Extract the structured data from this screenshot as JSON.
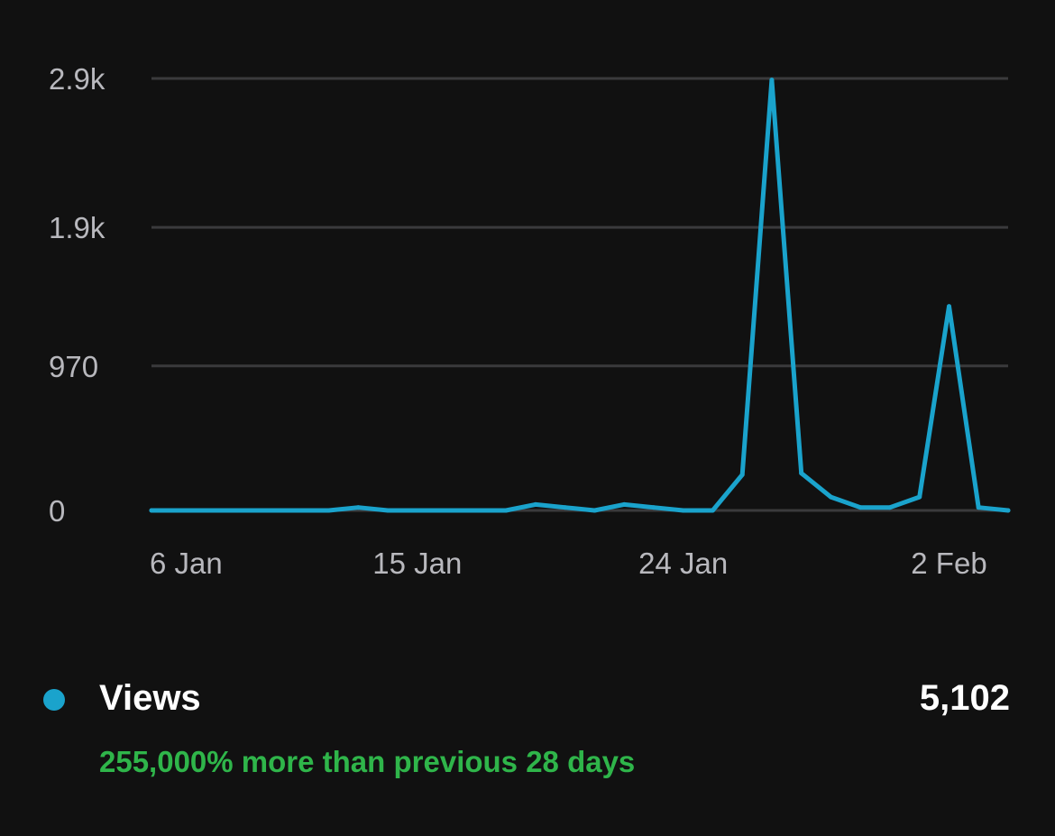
{
  "chart_data": {
    "type": "line",
    "title": "",
    "xlabel": "",
    "ylabel": "",
    "x_tick_labels": [
      "6 Jan",
      "15 Jan",
      "24 Jan",
      "2 Feb"
    ],
    "x_tick_dates": [
      "2025-01-06",
      "2025-01-15",
      "2025-01-24",
      "2025-02-02"
    ],
    "y_ticks": [
      0,
      970,
      1900,
      2900
    ],
    "y_tick_labels": [
      "0",
      "970",
      "1.9k",
      "2.9k"
    ],
    "ylim": [
      0,
      2900
    ],
    "xlim": [
      "2025-01-06",
      "2025-02-04"
    ],
    "grid": true,
    "legend": "bottom-left",
    "series": [
      {
        "name": "Views",
        "color": "#1aa3cc",
        "x": [
          "2025-01-06",
          "2025-01-07",
          "2025-01-08",
          "2025-01-09",
          "2025-01-10",
          "2025-01-11",
          "2025-01-12",
          "2025-01-13",
          "2025-01-14",
          "2025-01-15",
          "2025-01-16",
          "2025-01-17",
          "2025-01-18",
          "2025-01-19",
          "2025-01-20",
          "2025-01-21",
          "2025-01-22",
          "2025-01-23",
          "2025-01-24",
          "2025-01-25",
          "2025-01-26",
          "2025-01-27",
          "2025-01-28",
          "2025-01-29",
          "2025-01-30",
          "2025-01-31",
          "2025-02-01",
          "2025-02-02",
          "2025-02-03",
          "2025-02-04"
        ],
        "values": [
          0,
          0,
          0,
          0,
          0,
          0,
          0,
          20,
          0,
          0,
          0,
          0,
          0,
          40,
          20,
          0,
          40,
          20,
          0,
          0,
          240,
          2890,
          250,
          90,
          20,
          20,
          90,
          1370,
          20,
          0
        ]
      }
    ]
  },
  "legend": {
    "label": "Views",
    "total": "5,102",
    "dot_color": "#1aa3cc"
  },
  "comparison": {
    "text": "255,000% more than previous 28 days",
    "color": "#2fb54a"
  }
}
